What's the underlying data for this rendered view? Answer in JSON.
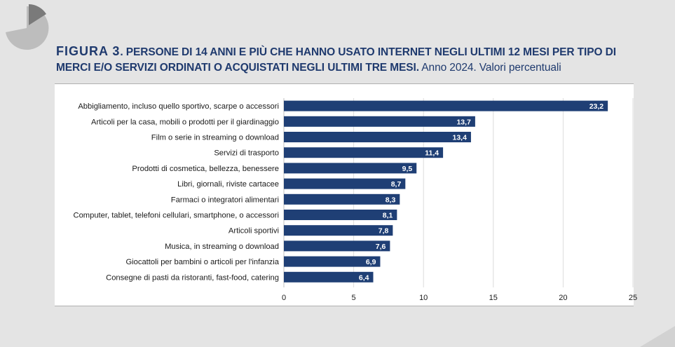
{
  "figure": {
    "label": "FIGURA 3",
    "heading": ". PERSONE DI 14 ANNI E PIÙ CHE HANNO USATO INTERNET NEGLI ULTIMI 12 MESI PER TIPO DI MERCI E/O SERVIZI ORDINATI O ACQUISTATI NEGLI ULTIMI TRE MESI.",
    "subtitle": " Anno 2024. Valori percentuali"
  },
  "colors": {
    "bar": "#1f3f75",
    "title": "#1f3a6e",
    "grid": "#dcdcdc",
    "logo_dark": "#7a7a7a",
    "logo_light": "#bdbdbd"
  },
  "chart_data": {
    "type": "bar",
    "orientation": "horizontal",
    "categories": [
      "Abbigliamento, incluso quello sportivo, scarpe o accessori",
      "Articoli per la casa, mobili o prodotti per il giardinaggio",
      "Film o serie in streaming o download",
      "Servizi di trasporto",
      "Prodotti di cosmetica, bellezza, benessere",
      "Libri, giornali, riviste cartacee",
      "Farmaci o integratori alimentari",
      "Computer, tablet, telefoni cellulari, smartphone, o accessori",
      "Articoli sportivi",
      "Musica, in streaming o download",
      "Giocattoli per bambini o articoli per l'infanzia",
      "Consegne di pasti da ristoranti, fast-food, catering"
    ],
    "values": [
      23.2,
      13.7,
      13.4,
      11.4,
      9.5,
      8.7,
      8.3,
      8.1,
      7.8,
      7.6,
      6.9,
      6.4
    ],
    "value_labels": [
      "23,2",
      "13,7",
      "13,4",
      "11,4",
      "9,5",
      "8,7",
      "8,3",
      "8,1",
      "7,8",
      "7,6",
      "6,9",
      "6,4"
    ],
    "xlim": [
      0,
      25
    ],
    "xticks": [
      0,
      5,
      10,
      15,
      20,
      25
    ],
    "xtick_labels": [
      "0",
      "5",
      "10",
      "15",
      "20",
      "25"
    ],
    "grid": true,
    "legend": "none"
  }
}
